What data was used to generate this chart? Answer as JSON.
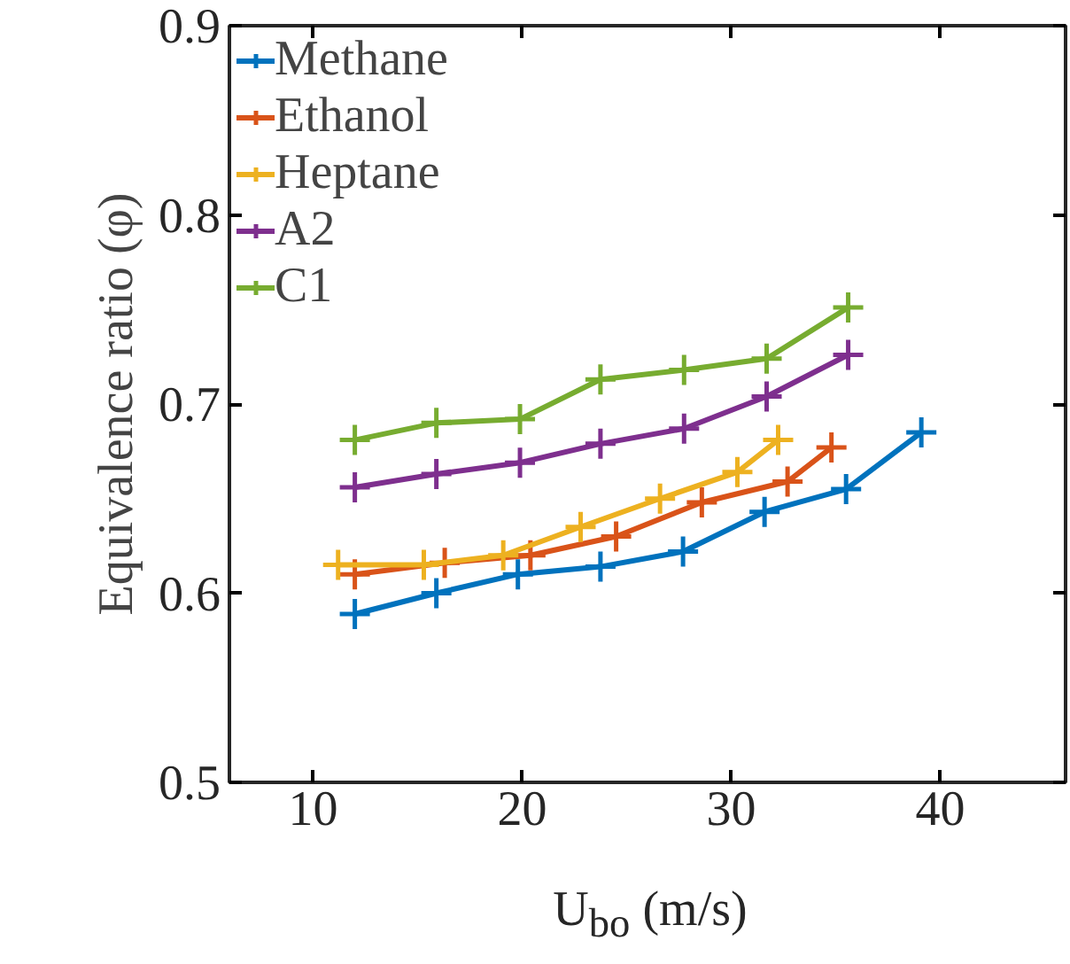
{
  "chart_data": {
    "type": "line",
    "xlabel": "U$_{bo}$ (m/s)",
    "ylabel": "Equivalence ratio (φ)",
    "xlim": [
      6,
      46
    ],
    "xticks": [
      10,
      20,
      30,
      40
    ],
    "ylim": [
      0.5,
      0.9
    ],
    "yticks": [
      0.5,
      0.6,
      0.7,
      0.8,
      0.9
    ],
    "grid": false,
    "legend": "top left",
    "marker": "cross",
    "line_style": "solid",
    "series": [
      {
        "name": "Methane",
        "color": "#0072bd",
        "x": [
          12.0,
          15.9,
          19.8,
          23.75,
          27.7,
          31.6,
          35.5,
          39.1
        ],
        "values": [
          0.589,
          0.6,
          0.61,
          0.614,
          0.622,
          0.643,
          0.655,
          0.685
        ]
      },
      {
        "name": "Ethanol",
        "color": "#d95319",
        "x": [
          12.0,
          16.3,
          20.4,
          24.5,
          28.6,
          32.7,
          34.8
        ],
        "values": [
          0.61,
          0.616,
          0.62,
          0.63,
          0.648,
          0.659,
          0.677
        ]
      },
      {
        "name": "Heptane",
        "color": "#edb120",
        "x": [
          11.2,
          15.3,
          19.1,
          22.8,
          26.6,
          30.3,
          32.25
        ],
        "values": [
          0.615,
          0.615,
          0.62,
          0.635,
          0.65,
          0.664,
          0.681
        ]
      },
      {
        "name": "A2",
        "color": "#7e2f8e",
        "x": [
          12.0,
          15.9,
          19.9,
          23.75,
          27.75,
          31.7,
          35.6
        ],
        "values": [
          0.656,
          0.663,
          0.669,
          0.679,
          0.687,
          0.704,
          0.726
        ]
      },
      {
        "name": "C1",
        "color": "#77ac30",
        "x": [
          12.0,
          15.9,
          19.9,
          23.75,
          27.75,
          31.7,
          35.6
        ],
        "values": [
          0.681,
          0.69,
          0.692,
          0.713,
          0.718,
          0.724,
          0.751
        ]
      }
    ]
  }
}
